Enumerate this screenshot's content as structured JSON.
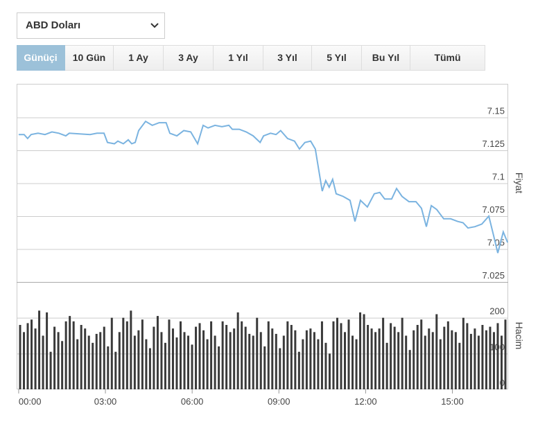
{
  "dropdown": {
    "label": "ABD Doları"
  },
  "tabs": [
    {
      "label": "Günüçi",
      "active": true
    },
    {
      "label": "10 Gün"
    },
    {
      "label": "1 Ay"
    },
    {
      "label": "3 Ay"
    },
    {
      "label": "1 Yıl"
    },
    {
      "label": "3 Yıl"
    },
    {
      "label": "5 Yıl"
    },
    {
      "label": "Bu Yıl"
    },
    {
      "label": "Tümü"
    }
  ],
  "chart_data": [
    {
      "type": "line",
      "axis_label": "Fiyat",
      "color": "#7ab3e0",
      "x": [
        0,
        0.19,
        0.31,
        0.43,
        0.67,
        0.91,
        1.15,
        1.39,
        1.63,
        1.75,
        2.47,
        2.71,
        2.95,
        3.07,
        3.31,
        3.43,
        3.62,
        3.79,
        3.91,
        4.03,
        4.15,
        4.39,
        4.62,
        4.86,
        5.1,
        5.23,
        5.47,
        5.71,
        5.95,
        6.19,
        6.38,
        6.55,
        6.79,
        7.03,
        7.27,
        7.39,
        7.63,
        7.87,
        8.11,
        8.35,
        8.47,
        8.71,
        8.9,
        9.06,
        9.3,
        9.54,
        9.71,
        9.9,
        10.1,
        10.26,
        10.38,
        10.5,
        10.62,
        10.74,
        10.86,
        10.98,
        11.22,
        11.46,
        11.63,
        11.82,
        12.06,
        12.3,
        12.49,
        12.66,
        12.9,
        13.07,
        13.26,
        13.5,
        13.74,
        13.93,
        14.1,
        14.27,
        14.46,
        14.7,
        14.94,
        15.18,
        15.37,
        15.54,
        15.78,
        16.02,
        16.26,
        16.43,
        16.57,
        16.76,
        16.91
      ],
      "values": [
        7.137,
        7.137,
        7.134,
        7.137,
        7.138,
        7.137,
        7.139,
        7.138,
        7.136,
        7.138,
        7.137,
        7.138,
        7.138,
        7.131,
        7.13,
        7.132,
        7.13,
        7.133,
        7.13,
        7.131,
        7.14,
        7.147,
        7.144,
        7.146,
        7.146,
        7.138,
        7.136,
        7.14,
        7.139,
        7.13,
        7.144,
        7.142,
        7.144,
        7.143,
        7.144,
        7.141,
        7.141,
        7.139,
        7.136,
        7.131,
        7.136,
        7.138,
        7.137,
        7.14,
        7.134,
        7.132,
        7.126,
        7.131,
        7.132,
        7.126,
        7.11,
        7.094,
        7.102,
        7.097,
        7.103,
        7.092,
        7.09,
        7.087,
        7.071,
        7.087,
        7.082,
        7.092,
        7.093,
        7.088,
        7.088,
        7.096,
        7.09,
        7.086,
        7.086,
        7.081,
        7.067,
        7.083,
        7.08,
        7.073,
        7.073,
        7.071,
        7.07,
        7.066,
        7.067,
        7.069,
        7.075,
        7.06,
        7.047,
        7.063,
        7.055
      ],
      "xlim": [
        -0.07,
        16.93
      ],
      "ylim": [
        7.025,
        7.1755
      ],
      "yticks": [
        7.025,
        7.05,
        7.075,
        7.1,
        7.125,
        7.15
      ],
      "grid": true
    },
    {
      "type": "bar",
      "axis_label": "Hacim",
      "color": "#3a3a3a",
      "values": [
        180,
        160,
        185,
        195,
        170,
        220,
        150,
        215,
        105,
        175,
        160,
        135,
        190,
        205,
        190,
        140,
        180,
        170,
        150,
        130,
        155,
        160,
        175,
        120,
        200,
        105,
        160,
        200,
        190,
        220,
        150,
        165,
        195,
        140,
        115,
        175,
        205,
        160,
        130,
        195,
        170,
        145,
        190,
        160,
        150,
        125,
        175,
        185,
        165,
        140,
        190,
        150,
        120,
        190,
        180,
        160,
        170,
        215,
        190,
        175,
        155,
        150,
        200,
        160,
        120,
        190,
        170,
        155,
        115,
        150,
        190,
        180,
        165,
        105,
        140,
        165,
        170,
        160,
        140,
        190,
        130,
        100,
        190,
        200,
        185,
        160,
        195,
        150,
        140,
        215,
        210,
        180,
        170,
        160,
        170,
        200,
        130,
        185,
        175,
        160,
        200,
        150,
        110,
        165,
        180,
        195,
        150,
        170,
        160,
        210,
        140,
        175,
        190,
        165,
        160,
        130,
        200,
        185,
        155,
        170,
        150,
        180,
        165,
        175,
        160,
        185,
        150,
        195
      ],
      "ylim": [
        0,
        300
      ],
      "yticks": [
        0,
        100,
        200
      ],
      "grid": true,
      "xlim": [
        -0.07,
        16.93
      ],
      "xticks": [
        {
          "value": 0,
          "label": "00:00"
        },
        {
          "value": 3,
          "label": "03:00"
        },
        {
          "value": 6,
          "label": "06:00"
        },
        {
          "value": 9,
          "label": "09:00"
        },
        {
          "value": 12,
          "label": "12:00"
        },
        {
          "value": 15,
          "label": "15:00"
        }
      ]
    }
  ]
}
